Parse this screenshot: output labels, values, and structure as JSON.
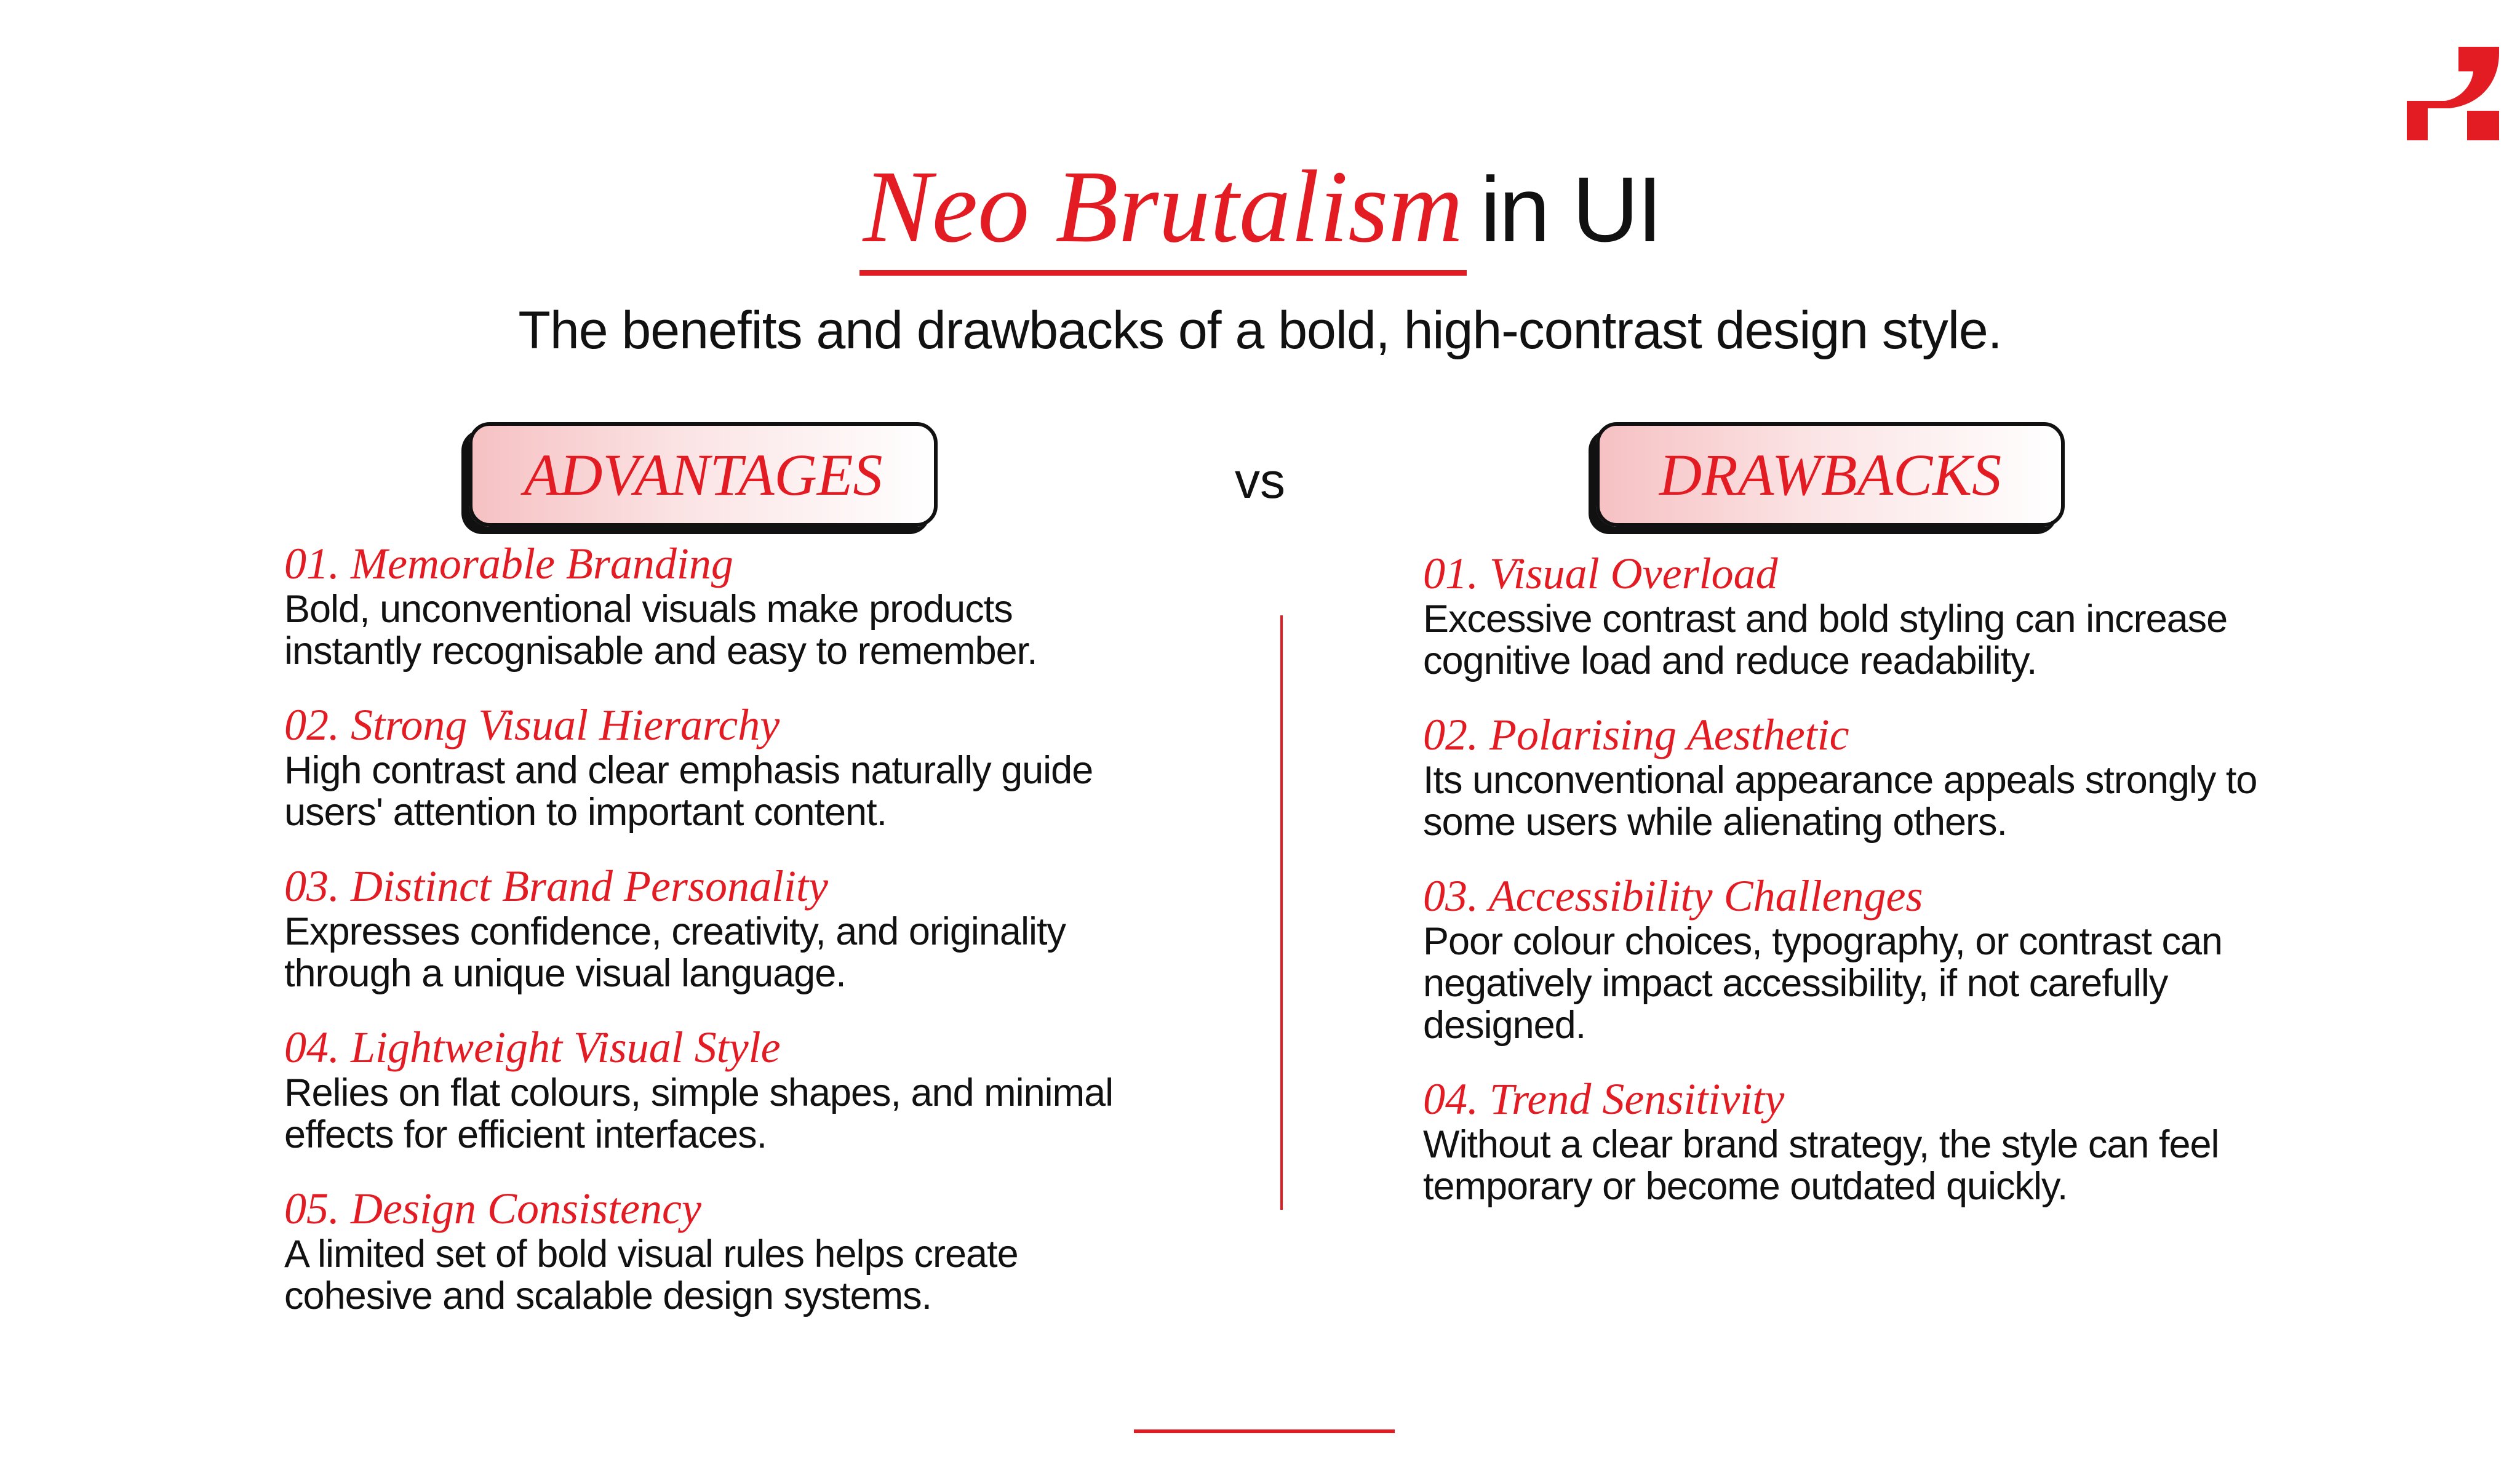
{
  "header": {
    "title_accent": "Neo Brutalism",
    "title_rest": "in UI",
    "subtitle": "The benefits and drawbacks of a bold, high-contrast design style."
  },
  "colors": {
    "accent": "#e31b23",
    "text": "#111111",
    "pill_gradient_start": "#f6c1c3",
    "background": "#ffffff"
  },
  "logo": {
    "icon": "brand-logo-icon"
  },
  "vs_label": "vs",
  "advantages": {
    "heading": "ADVANTAGES",
    "items": [
      {
        "title": "01. Memorable Branding",
        "body": "Bold, unconventional visuals make products instantly recognisable and easy to remember."
      },
      {
        "title": "02. Strong Visual Hierarchy",
        "body": "High contrast and clear emphasis naturally guide users' attention to important content."
      },
      {
        "title": "03. Distinct Brand Personality",
        "body": "Expresses confidence, creativity, and originality through a unique visual language."
      },
      {
        "title": "04. Lightweight Visual Style",
        "body": "Relies on flat colours, simple shapes, and minimal effects for efficient interfaces."
      },
      {
        "title": "05. Design Consistency",
        "body": "A limited set of bold visual rules helps create cohesive and scalable design systems."
      }
    ]
  },
  "drawbacks": {
    "heading": "DRAWBACKS",
    "items": [
      {
        "title": "01. Visual Overload",
        "body": "Excessive contrast and bold styling can increase cognitive load and reduce readability."
      },
      {
        "title": "02. Polarising Aesthetic",
        "body": "Its unconventional appearance appeals strongly to some users while alienating others."
      },
      {
        "title": "03. Accessibility Challenges",
        "body": "Poor colour choices, typography, or contrast can negatively impact accessibility, if not carefully designed."
      },
      {
        "title": "04. Trend Sensitivity",
        "body": "Without a clear brand strategy, the style can feel temporary or become outdated quickly."
      }
    ]
  }
}
